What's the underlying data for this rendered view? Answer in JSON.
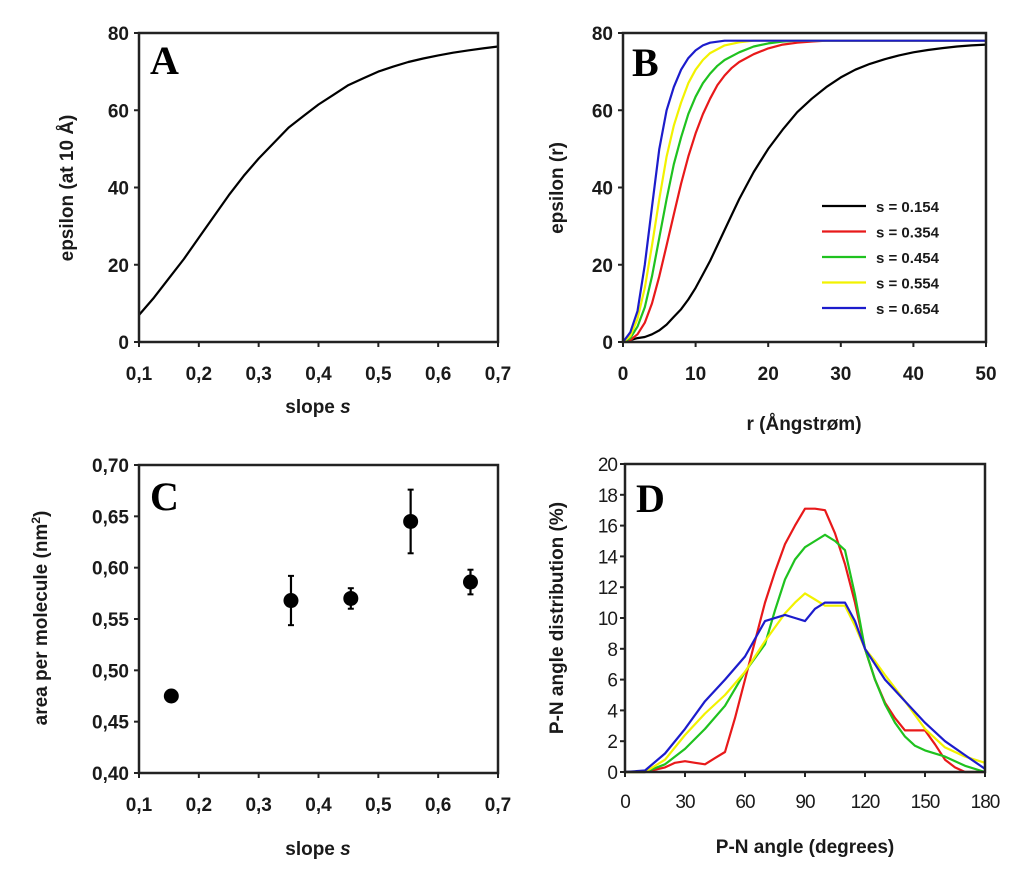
{
  "chart_data": [
    {
      "panel": "A",
      "type": "line",
      "xlabel": "slope",
      "xlabel_italic": "s",
      "ylabel": "epsilon (at 10 Å)",
      "xlim": [
        0.1,
        0.7
      ],
      "ylim": [
        0,
        80
      ],
      "xticks": [
        0.1,
        0.2,
        0.3,
        0.4,
        0.5,
        0.6,
        0.7
      ],
      "xtick_labels": [
        "0,1",
        "0,2",
        "0,3",
        "0,4",
        "0,5",
        "0,6",
        "0,7"
      ],
      "yticks": [
        0,
        20,
        40,
        60,
        80
      ],
      "ytick_labels": [
        "0",
        "20",
        "40",
        "60",
        "80"
      ],
      "grid": false,
      "series": [
        {
          "name": "epsilon at 10 Å",
          "color": "#000000",
          "x": [
            0.1,
            0.125,
            0.15,
            0.175,
            0.2,
            0.225,
            0.25,
            0.275,
            0.3,
            0.325,
            0.35,
            0.375,
            0.4,
            0.425,
            0.45,
            0.475,
            0.5,
            0.525,
            0.55,
            0.575,
            0.6,
            0.625,
            0.65,
            0.675,
            0.7
          ],
          "y": [
            7,
            11.5,
            16.5,
            21.5,
            27,
            32.5,
            38,
            43,
            47.5,
            51.5,
            55.5,
            58.5,
            61.5,
            64,
            66.5,
            68.3,
            70,
            71.3,
            72.5,
            73.4,
            74.2,
            74.9,
            75.5,
            76,
            76.5
          ]
        }
      ]
    },
    {
      "panel": "B",
      "type": "line",
      "xlabel": "r (Ångstrøm)",
      "ylabel": "epsilon (r)",
      "xlim": [
        0,
        50
      ],
      "ylim": [
        0,
        80
      ],
      "xticks": [
        0,
        10,
        20,
        30,
        40,
        50
      ],
      "xtick_labels": [
        "0",
        "10",
        "20",
        "30",
        "40",
        "50"
      ],
      "yticks": [
        0,
        20,
        40,
        60,
        80
      ],
      "ytick_labels": [
        "0",
        "20",
        "40",
        "60",
        "80"
      ],
      "grid": false,
      "legend_position": "center-right",
      "series": [
        {
          "name": "s = 0.154",
          "color": "#000000",
          "x": [
            0,
            1,
            2,
            3,
            4,
            5,
            6,
            7,
            8,
            9,
            10,
            11,
            12,
            13,
            14,
            15,
            16,
            17,
            18,
            19,
            20,
            22,
            24,
            26,
            28,
            30,
            32,
            34,
            36,
            38,
            40,
            42,
            44,
            46,
            48,
            50
          ],
          "y": [
            0,
            0.5,
            1,
            1.3,
            2,
            3,
            4.5,
            6.5,
            8.5,
            11,
            14,
            17.5,
            21,
            25,
            29,
            33,
            37,
            40.5,
            44,
            47,
            50,
            55,
            59.5,
            63,
            66,
            68.5,
            70.5,
            72,
            73.2,
            74.2,
            75,
            75.6,
            76.1,
            76.5,
            76.8,
            77
          ]
        },
        {
          "name": "s = 0.354",
          "color": "#e8191a",
          "x": [
            0,
            1,
            2,
            3,
            4,
            5,
            6,
            7,
            8,
            9,
            10,
            11,
            12,
            13,
            14,
            15,
            16,
            18,
            20,
            22,
            24,
            26,
            28,
            30,
            50
          ],
          "y": [
            0,
            0.5,
            2,
            5,
            10,
            17,
            25,
            33,
            41,
            48,
            54,
            59,
            63,
            66.5,
            69,
            71,
            72.5,
            74.5,
            76,
            77,
            77.5,
            77.8,
            78,
            78,
            78
          ]
        },
        {
          "name": "s = 0.454",
          "color": "#1fc21f",
          "x": [
            0,
            1,
            2,
            3,
            4,
            5,
            6,
            7,
            8,
            9,
            10,
            11,
            12,
            13,
            14,
            16,
            18,
            20,
            22,
            24,
            50
          ],
          "y": [
            0,
            1,
            4,
            9,
            17,
            27,
            37,
            46,
            53,
            59,
            63.5,
            67,
            69.5,
            71.5,
            73,
            75,
            76.5,
            77.3,
            77.8,
            78,
            78
          ]
        },
        {
          "name": "s = 0.554",
          "color": "#f2f200",
          "x": [
            0,
            1,
            2,
            3,
            4,
            5,
            6,
            7,
            8,
            9,
            10,
            11,
            12,
            14,
            16,
            18,
            20,
            50
          ],
          "y": [
            0,
            1.5,
            6,
            14,
            25,
            37,
            48,
            56,
            62,
            67,
            70.5,
            73,
            74.8,
            76.8,
            77.6,
            78,
            78,
            78
          ]
        },
        {
          "name": "s = 0.654",
          "color": "#1c1ccc",
          "x": [
            0,
            1,
            2,
            3,
            4,
            5,
            6,
            7,
            8,
            9,
            10,
            11,
            12,
            14,
            16,
            50
          ],
          "y": [
            0,
            2.5,
            8,
            20,
            35,
            50,
            60,
            66,
            70.5,
            73.5,
            75.5,
            76.8,
            77.5,
            78,
            78,
            78
          ]
        }
      ]
    },
    {
      "panel": "C",
      "type": "scatter",
      "xlabel": "slope",
      "xlabel_italic": "s",
      "ylabel": "area per molecule (nm",
      "ylabel_sup": "2",
      "ylabel_end": ")",
      "xlim": [
        0.1,
        0.7
      ],
      "ylim": [
        0.4,
        0.7
      ],
      "xticks": [
        0.1,
        0.2,
        0.3,
        0.4,
        0.5,
        0.6,
        0.7
      ],
      "xtick_labels": [
        "0,1",
        "0,2",
        "0,3",
        "0,4",
        "0,5",
        "0,6",
        "0,7"
      ],
      "yticks": [
        0.4,
        0.45,
        0.5,
        0.55,
        0.6,
        0.65,
        0.7
      ],
      "ytick_labels": [
        "0,40",
        "0,45",
        "0,50",
        "0,55",
        "0,60",
        "0,65",
        "0,70"
      ],
      "grid": false,
      "series": [
        {
          "name": "area per molecule",
          "color": "#000000",
          "x": [
            0.154,
            0.354,
            0.454,
            0.554,
            0.654
          ],
          "y": [
            0.475,
            0.568,
            0.57,
            0.645,
            0.586
          ],
          "err": [
            0.005,
            0.024,
            0.01,
            0.031,
            0.012
          ]
        }
      ]
    },
    {
      "panel": "D",
      "type": "line",
      "xlabel": "P-N angle (degrees)",
      "ylabel": "P-N angle distribution (%)",
      "xlim": [
        0,
        180
      ],
      "ylim": [
        0,
        20
      ],
      "xticks": [
        0,
        30,
        60,
        90,
        120,
        150,
        180
      ],
      "xtick_labels": [
        "0",
        "30",
        "60",
        "90",
        "120",
        "150",
        "180"
      ],
      "yticks": [
        0,
        2,
        4,
        6,
        8,
        10,
        12,
        14,
        16,
        18,
        20
      ],
      "ytick_labels": [
        "0",
        "2",
        "4",
        "6",
        "8",
        "10",
        "12",
        "14",
        "16",
        "18",
        "20"
      ],
      "grid": false,
      "series": [
        {
          "name": "s = 0.354",
          "color": "#e8191a",
          "x": [
            0,
            10,
            20,
            25,
            30,
            35,
            40,
            45,
            50,
            55,
            60,
            65,
            70,
            75,
            80,
            85,
            90,
            95,
            100,
            105,
            110,
            115,
            120,
            125,
            130,
            135,
            140,
            145,
            150,
            155,
            160,
            165,
            170,
            175,
            180
          ],
          "y": [
            0,
            0,
            0.3,
            0.6,
            0.7,
            0.6,
            0.5,
            0.9,
            1.3,
            3.5,
            6,
            8.5,
            11,
            13,
            14.8,
            16,
            17.1,
            17.1,
            17,
            15.5,
            13.5,
            11,
            8,
            6,
            4.5,
            3.5,
            2.7,
            2.7,
            2.7,
            1.8,
            0.8,
            0.3,
            0,
            0,
            0
          ]
        },
        {
          "name": "s = 0.454",
          "color": "#1fc21f",
          "x": [
            0,
            10,
            20,
            30,
            40,
            50,
            60,
            70,
            75,
            80,
            85,
            90,
            95,
            100,
            105,
            110,
            115,
            120,
            125,
            130,
            135,
            140,
            145,
            150,
            160,
            170,
            180
          ],
          "y": [
            0,
            0,
            0.5,
            1.5,
            2.8,
            4.3,
            6.5,
            8.3,
            10.5,
            12.5,
            13.8,
            14.6,
            15,
            15.4,
            15,
            14.4,
            11.5,
            8,
            6,
            4.4,
            3.2,
            2.3,
            1.7,
            1.4,
            1,
            0.4,
            0
          ]
        },
        {
          "name": "s = 0.554",
          "color": "#f2f200",
          "x": [
            0,
            10,
            20,
            30,
            40,
            50,
            60,
            70,
            80,
            85,
            90,
            95,
            100,
            105,
            110,
            115,
            120,
            125,
            130,
            140,
            150,
            160,
            170,
            180
          ],
          "y": [
            0,
            0,
            0.8,
            2.4,
            3.8,
            5,
            6.5,
            8.5,
            10.3,
            11,
            11.6,
            11.2,
            10.8,
            10.8,
            10.8,
            9.5,
            8,
            7.2,
            6.3,
            4.6,
            2.8,
            1.6,
            1,
            0.6
          ]
        },
        {
          "name": "s = 0.654",
          "color": "#1c1ccc",
          "x": [
            0,
            10,
            20,
            30,
            40,
            50,
            60,
            70,
            80,
            85,
            90,
            95,
            100,
            105,
            110,
            115,
            120,
            130,
            140,
            150,
            160,
            170,
            180
          ],
          "y": [
            0,
            0.1,
            1.2,
            2.8,
            4.6,
            6,
            7.5,
            9.8,
            10.2,
            10,
            9.8,
            10.6,
            11,
            11,
            11,
            9.8,
            8,
            6,
            4.6,
            3.2,
            2,
            1.1,
            0.2
          ]
        }
      ]
    }
  ]
}
